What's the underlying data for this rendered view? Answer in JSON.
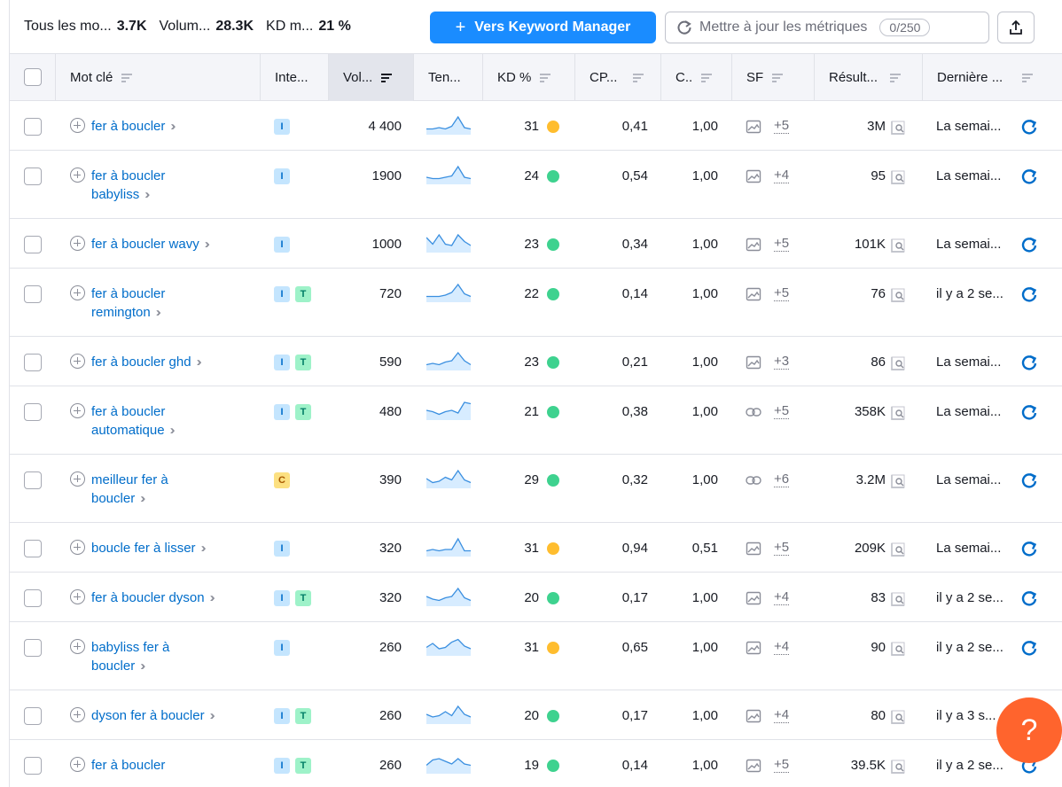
{
  "summary": {
    "all_keywords_label": "Tous les mo...",
    "all_keywords_value": "3.7K",
    "volume_label": "Volum...",
    "volume_value": "28.3K",
    "kd_label": "KD m...",
    "kd_value": "21 %"
  },
  "toolbar": {
    "keyword_manager_label": "Vers Keyword Manager",
    "update_metrics_label": "Mettre à jour les métriques",
    "update_counter": "0/250",
    "export_icon": "upload-icon"
  },
  "columns": {
    "keyword": "Mot clé",
    "intent": "Inte...",
    "volume": "Vol...",
    "trend": "Ten...",
    "kd": "KD %",
    "cpc": "CP...",
    "competition": "C..",
    "sf": "SF",
    "results": "Résult...",
    "last_update": "Dernière ..."
  },
  "colors": {
    "accent": "#1a8cff",
    "link": "#006dca",
    "kd_green": "#3ed28f",
    "kd_yellow": "#ffbd2e",
    "help": "#ff642d"
  },
  "rows": [
    {
      "kw": "fer à boucler",
      "kw_lines": [
        "fer à boucler"
      ],
      "intents": [
        "I"
      ],
      "volume": "4 400",
      "trend": [
        3,
        3,
        4,
        3,
        5,
        12,
        4,
        3
      ],
      "kd": "31",
      "kd_color": "#ffbd2e",
      "cpc": "0,41",
      "comp": "1,00",
      "sf_icon": "image-icon",
      "sf_more": "+5",
      "results": "3M",
      "update": "La semai...",
      "height": 56
    },
    {
      "kw": "fer à boucler babyliss",
      "kw_lines": [
        "fer à boucler",
        "babyliss"
      ],
      "intents": [
        "I"
      ],
      "volume": "1900",
      "trend": [
        4,
        3,
        3,
        4,
        5,
        12,
        4,
        3
      ],
      "kd": "24",
      "kd_color": "#3ed28f",
      "cpc": "0,54",
      "comp": "1,00",
      "sf_icon": "image-icon",
      "sf_more": "+4",
      "results": "95",
      "update": "La semai...",
      "height": 77
    },
    {
      "kw": "fer à boucler wavy",
      "kw_lines": [
        "fer à boucler wavy"
      ],
      "intents": [
        "I"
      ],
      "volume": "1000",
      "trend": [
        10,
        5,
        12,
        5,
        4,
        12,
        7,
        4
      ],
      "kd": "23",
      "kd_color": "#3ed28f",
      "cpc": "0,34",
      "comp": "1,00",
      "sf_icon": "image-icon",
      "sf_more": "+5",
      "results": "101K",
      "update": "La semai...",
      "height": 56
    },
    {
      "kw": "fer à boucler remington",
      "kw_lines": [
        "fer à boucler",
        "remington"
      ],
      "intents": [
        "I",
        "T"
      ],
      "volume": "720",
      "trend": [
        3,
        3,
        3,
        4,
        6,
        12,
        5,
        3
      ],
      "kd": "22",
      "kd_color": "#3ed28f",
      "cpc": "0,14",
      "comp": "1,00",
      "sf_icon": "image-icon",
      "sf_more": "+5",
      "results": "76",
      "update": "il y a 2 se...",
      "height": 77
    },
    {
      "kw": "fer à boucler ghd",
      "kw_lines": [
        "fer à boucler ghd"
      ],
      "intents": [
        "I",
        "T"
      ],
      "volume": "590",
      "trend": [
        3,
        4,
        3,
        5,
        6,
        12,
        6,
        3
      ],
      "kd": "23",
      "kd_color": "#3ed28f",
      "cpc": "0,21",
      "comp": "1,00",
      "sf_icon": "image-icon",
      "sf_more": "+3",
      "results": "86",
      "update": "La semai...",
      "height": 56
    },
    {
      "kw": "fer à boucler automatique",
      "kw_lines": [
        "fer à boucler",
        "automatique"
      ],
      "intents": [
        "I",
        "T"
      ],
      "volume": "480",
      "trend": [
        6,
        5,
        3,
        5,
        6,
        4,
        12,
        11
      ],
      "kd": "21",
      "kd_color": "#3ed28f",
      "cpc": "0,38",
      "comp": "1,00",
      "sf_icon": "link-icon",
      "sf_more": "+5",
      "results": "358K",
      "update": "La semai...",
      "height": 77
    },
    {
      "kw": "meilleur fer à boucler",
      "kw_lines": [
        "meilleur fer à",
        "boucler"
      ],
      "intents": [
        "C"
      ],
      "volume": "390",
      "trend": [
        6,
        3,
        4,
        7,
        5,
        12,
        5,
        3
      ],
      "kd": "29",
      "kd_color": "#3ed28f",
      "cpc": "0,32",
      "comp": "1,00",
      "sf_icon": "link-icon",
      "sf_more": "+6",
      "results": "3.2M",
      "update": "La semai...",
      "height": 77
    },
    {
      "kw": "boucle fer à lisser",
      "kw_lines": [
        "boucle fer à lisser"
      ],
      "intents": [
        "I"
      ],
      "volume": "320",
      "trend": [
        3,
        4,
        3,
        4,
        4,
        12,
        3,
        3
      ],
      "kd": "31",
      "kd_color": "#ffbd2e",
      "cpc": "0,94",
      "comp": "0,51",
      "sf_icon": "image-icon",
      "sf_more": "+5",
      "results": "209K",
      "update": "La semai...",
      "height": 56
    },
    {
      "kw": "fer à boucler dyson",
      "kw_lines": [
        "fer à boucler dyson"
      ],
      "intents": [
        "I",
        "T"
      ],
      "volume": "320",
      "trend": [
        6,
        4,
        3,
        5,
        6,
        12,
        5,
        3
      ],
      "kd": "20",
      "kd_color": "#3ed28f",
      "cpc": "0,17",
      "comp": "1,00",
      "sf_icon": "image-icon",
      "sf_more": "+4",
      "results": "83",
      "update": "il y a 2 se...",
      "height": 56
    },
    {
      "kw": "babyliss fer à boucler",
      "kw_lines": [
        "babyliss fer à",
        "boucler"
      ],
      "intents": [
        "I"
      ],
      "volume": "260",
      "trend": [
        5,
        8,
        4,
        5,
        9,
        11,
        6,
        4
      ],
      "kd": "31",
      "kd_color": "#ffbd2e",
      "cpc": "0,65",
      "comp": "1,00",
      "sf_icon": "image-icon",
      "sf_more": "+4",
      "results": "90",
      "update": "il y a 2 se...",
      "height": 77
    },
    {
      "kw": "dyson fer à boucler",
      "kw_lines": [
        "dyson fer à boucler"
      ],
      "intents": [
        "I",
        "T"
      ],
      "volume": "260",
      "trend": [
        6,
        4,
        5,
        8,
        5,
        12,
        6,
        4
      ],
      "kd": "20",
      "kd_color": "#3ed28f",
      "cpc": "0,17",
      "comp": "1,00",
      "sf_icon": "image-icon",
      "sf_more": "+4",
      "results": "80",
      "update": "il y a 3 s...",
      "height": 56
    },
    {
      "kw": "fer à boucler",
      "kw_lines": [
        "fer à boucler",
        ""
      ],
      "intents": [
        "I",
        "T"
      ],
      "volume": "260",
      "trend": [
        5,
        9,
        10,
        8,
        6,
        10,
        6,
        5
      ],
      "kd": "19",
      "kd_color": "#3ed28f",
      "cpc": "0,14",
      "comp": "1,00",
      "sf_icon": "image-icon",
      "sf_more": "+5",
      "results": "39.5K",
      "update": "il y a 2 se...",
      "height": 77
    }
  ],
  "help_label": "?"
}
